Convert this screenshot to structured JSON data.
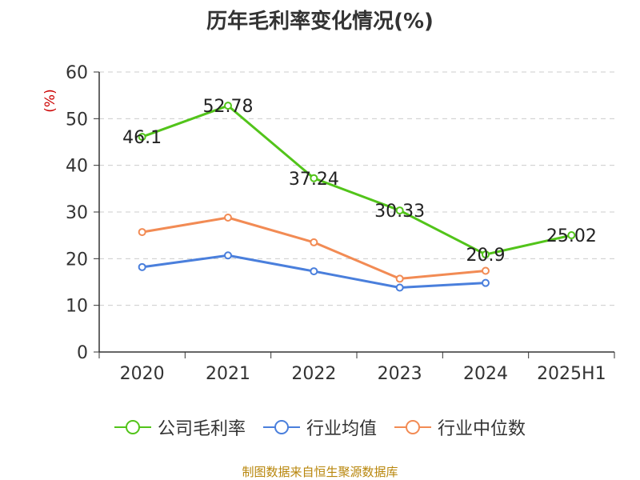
{
  "title": "历年毛利率变化情况(%)",
  "source_note": "制图数据来自恒生聚源数据库",
  "chart_data": {
    "type": "line",
    "title": "历年毛利率变化情况(%)",
    "ylabel": "(%)",
    "xlabel": "",
    "ylim": [
      0,
      60
    ],
    "yticks": [
      0,
      10,
      20,
      30,
      40,
      50,
      60
    ],
    "grid": true,
    "legend_position": "bottom",
    "categories": [
      "2020",
      "2021",
      "2022",
      "2023",
      "2024",
      "2025H1"
    ],
    "series": [
      {
        "name": "公司毛利率",
        "color": "#52c41a",
        "values": [
          46.1,
          52.78,
          37.24,
          30.33,
          20.9,
          25.02
        ],
        "labels": [
          "46.1",
          "52.78",
          "37.24",
          "30.33",
          "20.9",
          "25.02"
        ]
      },
      {
        "name": "行业均值",
        "color": "#4a7fdc",
        "values": [
          18.2,
          20.7,
          17.3,
          13.8,
          14.8,
          null
        ]
      },
      {
        "name": "行业中位数",
        "color": "#f28b54",
        "values": [
          25.7,
          28.8,
          23.5,
          15.7,
          17.4,
          null
        ]
      }
    ]
  }
}
